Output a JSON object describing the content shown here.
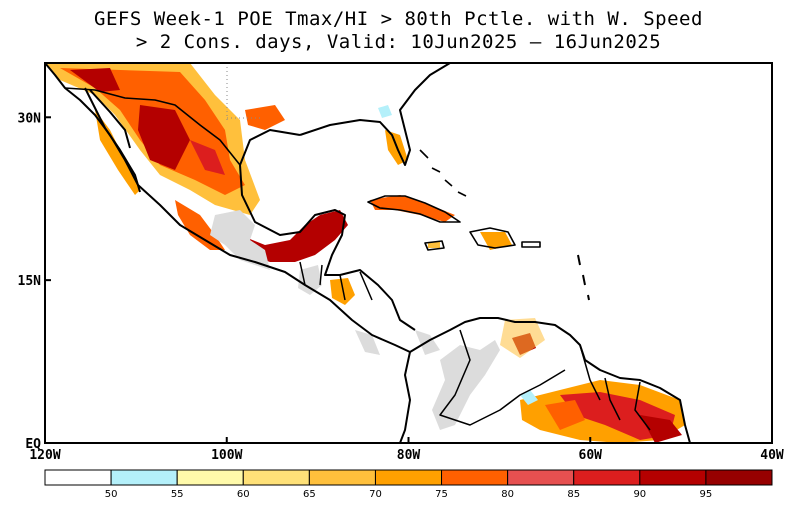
{
  "title_line1": "GEFS Week-1 POE Tmax/HI > 80th Pctle. with W. Speed",
  "title_line2": "> 2 Cons. days, Valid: 10Jun2025 – 16Jun2025",
  "map": {
    "lon_range": [
      -120,
      -40
    ],
    "lat_range": [
      0,
      35
    ],
    "lon_ticks": [
      {
        "value": -120,
        "label": "120W"
      },
      {
        "value": -100,
        "label": "100W"
      },
      {
        "value": -80,
        "label": "80W"
      },
      {
        "value": -60,
        "label": "60W"
      },
      {
        "value": -40,
        "label": "40W"
      }
    ],
    "lat_ticks": [
      {
        "value": 30,
        "label": "30N"
      },
      {
        "value": 15,
        "label": "15N"
      },
      {
        "value": 0,
        "label": "EQ"
      }
    ],
    "missing_color": "#dcdcdc"
  },
  "colorbar": {
    "labels": [
      "50",
      "55",
      "60",
      "65",
      "70",
      "75",
      "80",
      "85",
      "90",
      "95"
    ],
    "colors": [
      "#ffffff",
      "#b4f0fa",
      "#fffaaa",
      "#ffe178",
      "#ffc03c",
      "#ffa000",
      "#ff6000",
      "#e65050",
      "#dc1e1e",
      "#b40000",
      "#960000"
    ]
  }
}
